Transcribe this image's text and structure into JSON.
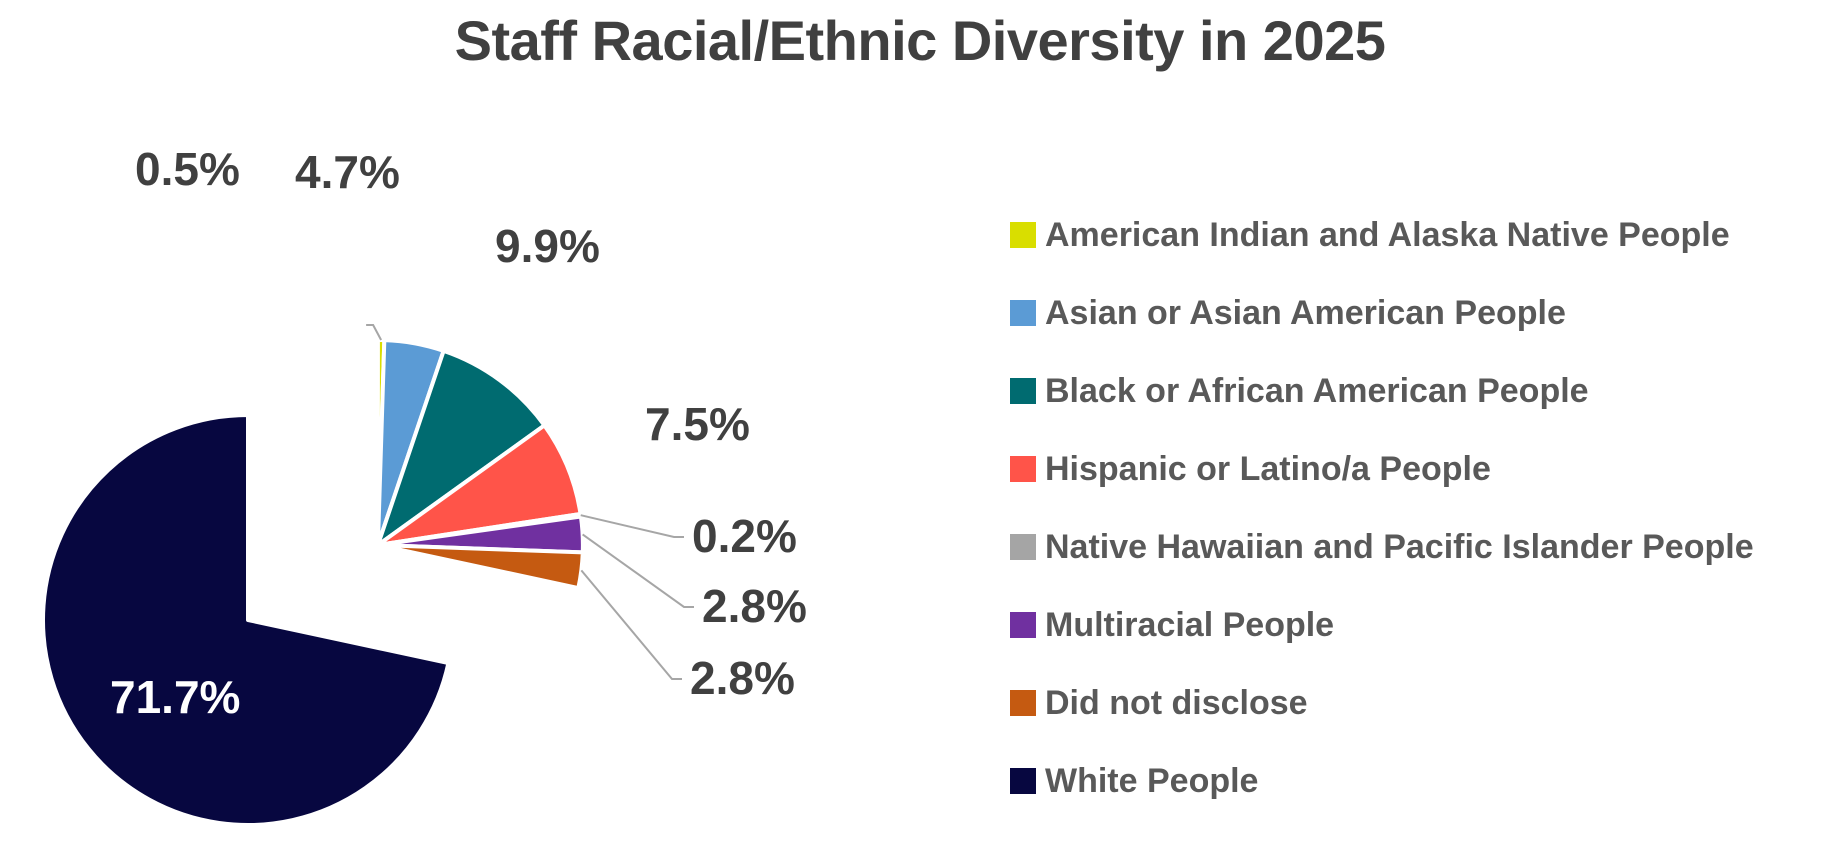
{
  "chart_data": {
    "type": "pie",
    "title": "Staff Racial/Ethnic Diversity in 2025",
    "slices": [
      {
        "label": "American Indian and Alaska Native People",
        "value": 0.5,
        "value_label": "0.5%",
        "color": "#D9DE00"
      },
      {
        "label": "Asian or Asian American People",
        "value": 4.7,
        "value_label": "4.7%",
        "color": "#5B9BD5"
      },
      {
        "label": "Black or African American People",
        "value": 9.9,
        "value_label": "9.9%",
        "color": "#006B70"
      },
      {
        "label": "Hispanic or Latino/a People",
        "value": 7.5,
        "value_label": "7.5%",
        "color": "#FF5449"
      },
      {
        "label": "Native Hawaiian and Pacific Islander People",
        "value": 0.2,
        "value_label": "0.2%",
        "color": "#A5A5A5"
      },
      {
        "label": "Multiracial People",
        "value": 2.8,
        "value_label": "2.8%",
        "color": "#7030A0"
      },
      {
        "label": "Did not disclose",
        "value": 2.8,
        "value_label": "2.8%",
        "color": "#C55A11"
      },
      {
        "label": "White People",
        "value": 71.7,
        "value_label": "71.7%",
        "color": "#070740"
      }
    ],
    "exploded": [
      "American Indian and Alaska Native People",
      "Asian or Asian American People",
      "Black or African American People",
      "Hispanic or Latino/a People",
      "Native Hawaiian and Pacific Islander People",
      "Multiracial People",
      "Did not disclose"
    ],
    "legend_position": "right"
  }
}
